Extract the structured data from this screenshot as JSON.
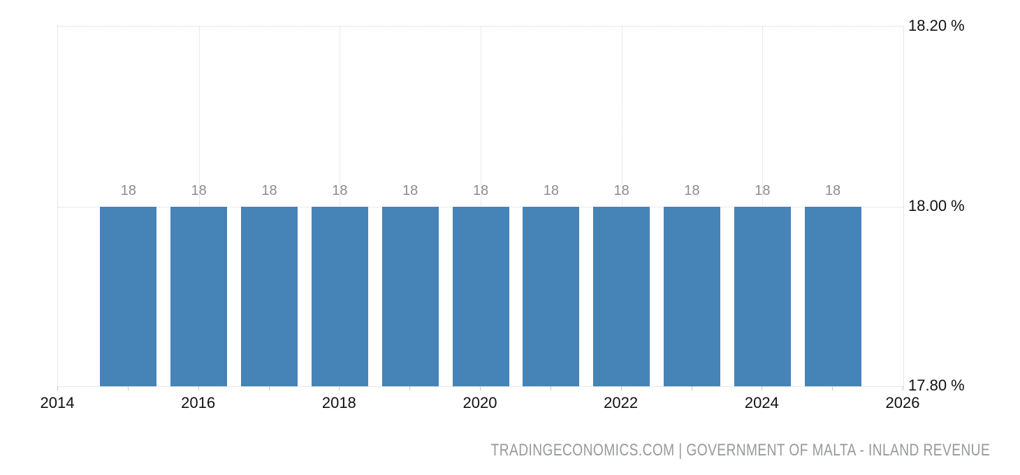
{
  "chart_data": {
    "type": "bar",
    "categories": [
      2015,
      2016,
      2017,
      2018,
      2019,
      2020,
      2021,
      2022,
      2023,
      2024,
      2025
    ],
    "values": [
      18,
      18,
      18,
      18,
      18,
      18,
      18,
      18,
      18,
      18,
      18
    ],
    "bar_labels": [
      "18",
      "18",
      "18",
      "18",
      "18",
      "18",
      "18",
      "18",
      "18",
      "18",
      "18"
    ],
    "xlabel": "",
    "ylabel": "",
    "x_axis": {
      "min": 2014,
      "max": 2026,
      "tick_interval": 1,
      "labeled_ticks": [
        "2014",
        "2016",
        "2018",
        "2020",
        "2022",
        "2024",
        "2026"
      ],
      "labeled_tick_values": [
        2014,
        2016,
        2018,
        2020,
        2022,
        2024,
        2026
      ],
      "gridline_values": [
        2016,
        2018,
        2020,
        2022,
        2024
      ]
    },
    "y_axis": {
      "min": 17.8,
      "max": 18.2,
      "position": "right",
      "tick_values": [
        17.8,
        18.0,
        18.2
      ],
      "tick_labels": [
        "17.80 %",
        "18.00 %",
        "18.20 %"
      ],
      "inner_gridline_values": [
        18.0
      ]
    },
    "grid": "dotted",
    "legend": "none"
  },
  "footer": {
    "attribution": "TRADINGECONOMICS.COM | GOVERNMENT OF MALTA - INLAND REVENUE"
  },
  "colors": {
    "bar": "#4683B7",
    "grid": "#d6d6d6",
    "plot_border": "#cfcfcf",
    "axis_tick": "#c6c6c6",
    "axis_text": "#111111",
    "bar_label_text": "#8c8c8c",
    "attribution_text": "#97999c",
    "background": "#ffffff"
  }
}
